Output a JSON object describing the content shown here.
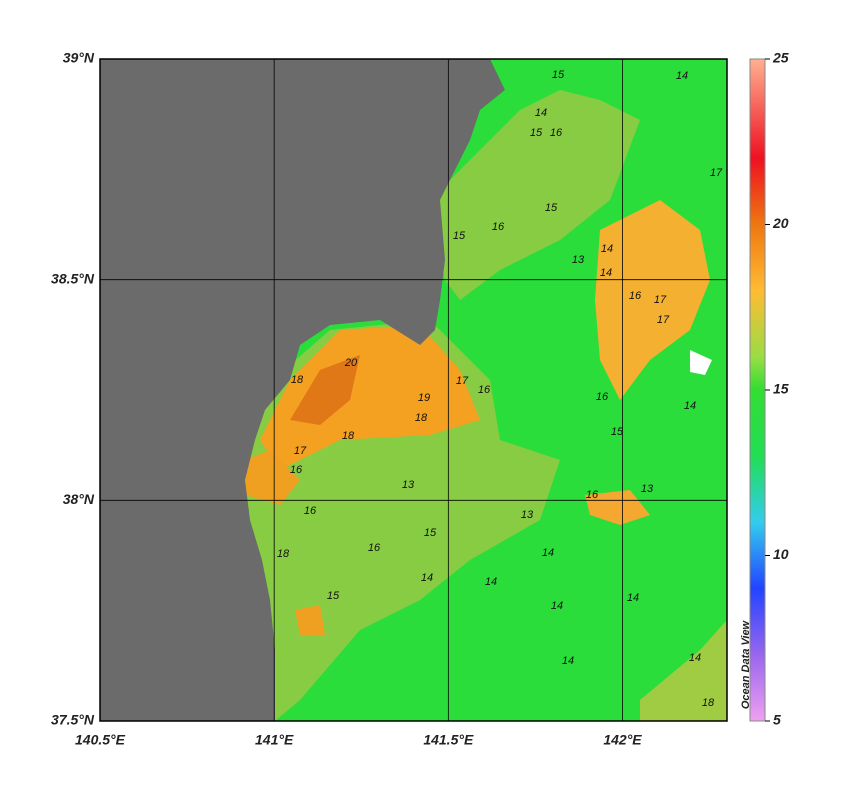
{
  "map": {
    "xlim": [
      140.5,
      142.3
    ],
    "ylim": [
      37.5,
      39
    ],
    "xticks": [
      {
        "value": 140.5,
        "label": "140.5°E"
      },
      {
        "value": 141,
        "label": "141°E"
      },
      {
        "value": 141.5,
        "label": "141.5°E"
      },
      {
        "value": 142,
        "label": "142°E"
      }
    ],
    "yticks": [
      {
        "value": 37.5,
        "label": "37.5°N"
      },
      {
        "value": 38,
        "label": "38°N"
      },
      {
        "value": 38.5,
        "label": "38.5°N"
      },
      {
        "value": 39,
        "label": "39°N"
      }
    ],
    "grid": true,
    "colorbar": {
      "lim": [
        5,
        25
      ],
      "ticks": [
        5,
        10,
        15,
        20,
        25
      ],
      "label": "Ocean Data View"
    },
    "contour_labels": [
      15,
      14,
      15,
      16,
      14,
      17,
      15,
      16,
      15,
      14,
      13,
      14,
      16,
      17,
      17,
      20,
      18,
      19,
      18,
      17,
      16,
      18,
      17,
      16,
      13,
      16,
      15,
      14,
      15,
      14,
      13,
      14,
      14,
      14,
      14,
      16,
      18,
      15,
      16,
      14,
      13,
      16,
      14,
      18
    ]
  }
}
